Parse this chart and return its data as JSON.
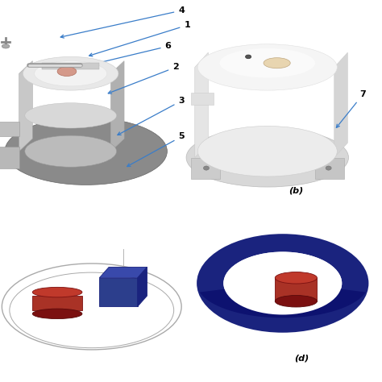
{
  "bg_color": "#ffffff",
  "label_b": "(b)",
  "label_d": "(d)",
  "arrow_color": "#3a7dc9",
  "text_color": "#000000",
  "dark_red_top": "#c0392b",
  "dark_red_side": "#922b21",
  "dark_red_dark": "#7b1010",
  "dark_blue_top": "#3949ab",
  "dark_blue_face": "#2c3e8c",
  "dark_blue_side": "#1a237e",
  "ring_blue": "#1a237e",
  "ring_blue_dark": "#0d1270",
  "gray_ring": "#999999",
  "gray_light": "#cccccc"
}
